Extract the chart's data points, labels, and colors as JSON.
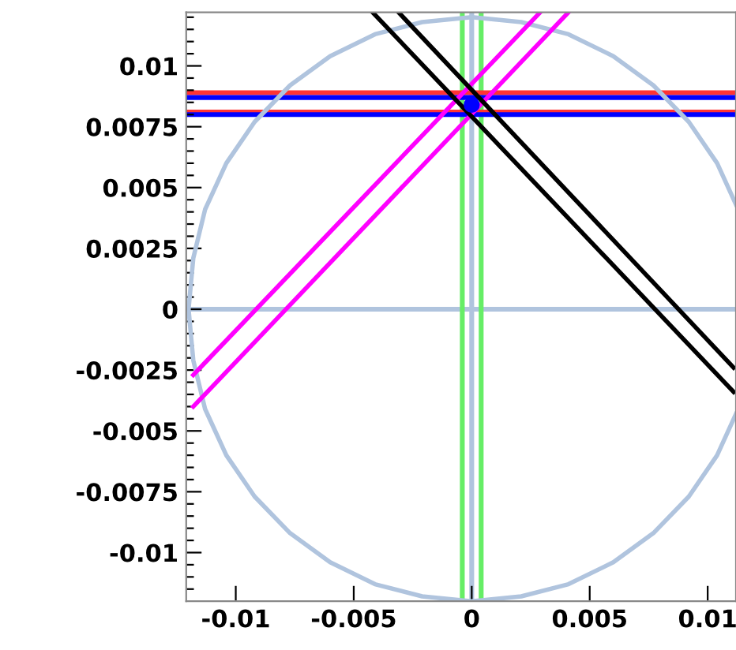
{
  "chart_data": {
    "type": "line",
    "xlim": [
      -0.0121,
      0.0112
    ],
    "ylim": [
      -0.012,
      0.0122
    ],
    "xticks": [
      -0.01,
      -0.005,
      0,
      0.005,
      {
        "value": 0.01,
        "label": "0.01"
      }
    ],
    "yticks": [
      -0.01,
      -0.0075,
      -0.005,
      -0.0025,
      0,
      0.0025,
      0.005,
      0.0075,
      0.01,
      {
        "value": -0.0115,
        "label": null
      },
      {
        "value": -0.011,
        "label": null
      },
      {
        "value": -0.0105,
        "label": null
      },
      {
        "value": -0.0095,
        "label": null
      },
      {
        "value": -0.009,
        "label": null
      },
      {
        "value": -0.0085,
        "label": null
      },
      {
        "value": -0.008,
        "label": null
      },
      {
        "value": -0.007,
        "label": null
      },
      {
        "value": -0.0065,
        "label": null
      },
      {
        "value": -0.006,
        "label": null
      },
      {
        "value": -0.0055,
        "label": null
      },
      {
        "value": -0.0045,
        "label": null
      },
      {
        "value": -0.004,
        "label": null
      },
      {
        "value": -0.0035,
        "label": null
      },
      {
        "value": -0.003,
        "label": null
      },
      {
        "value": -0.002,
        "label": null
      },
      {
        "value": -0.0015,
        "label": null
      },
      {
        "value": -0.001,
        "label": null
      },
      {
        "value": -0.0005,
        "label": null
      },
      {
        "value": 0.0005,
        "label": null
      },
      {
        "value": 0.001,
        "label": null
      },
      {
        "value": 0.0015,
        "label": null
      },
      {
        "value": 0.002,
        "label": null
      },
      {
        "value": 0.003,
        "label": null
      },
      {
        "value": 0.0035,
        "label": null
      },
      {
        "value": 0.004,
        "label": null
      },
      {
        "value": 0.0045,
        "label": null
      },
      {
        "value": 0.0055,
        "label": null
      },
      {
        "value": 0.006,
        "label": null
      },
      {
        "value": 0.0065,
        "label": null
      },
      {
        "value": 0.007,
        "label": null
      },
      {
        "value": 0.008,
        "label": null
      },
      {
        "value": 0.0085,
        "label": null
      },
      {
        "value": 0.009,
        "label": null
      },
      {
        "value": 0.0095,
        "label": null
      },
      {
        "value": 0.0105,
        "label": null
      },
      {
        "value": 0.011,
        "label": null
      },
      {
        "value": 0.0115,
        "label": null
      },
      {
        "value": 0.012,
        "label": null
      }
    ],
    "grid": false,
    "legend": false,
    "marker": "none",
    "line_style": "solid",
    "series": [
      {
        "color": "#b0c4de",
        "x": [
          0.0112,
          0.0104,
          0.0092,
          0.0077,
          0.006,
          0.0041,
          0.0021,
          0,
          -0.0021,
          -0.0041,
          -0.006,
          -0.0077,
          -0.0092,
          -0.0104,
          -0.0113,
          -0.0118,
          -0.012,
          -0.0118,
          -0.0113,
          -0.0104,
          -0.0092,
          -0.0077,
          -0.006,
          -0.0041,
          -0.0021,
          0,
          0.0021,
          0.0041,
          0.006,
          0.0077,
          0.0092,
          0.0104,
          0.0112
        ],
        "values": [
          0.0043,
          0.006,
          0.0077,
          0.0092,
          0.0104,
          0.0113,
          0.0118,
          0.012,
          0.0118,
          0.0113,
          0.0104,
          0.0092,
          0.0077,
          0.006,
          0.0041,
          0.0021,
          0,
          -0.0021,
          -0.0041,
          -0.006,
          -0.0077,
          -0.0092,
          -0.0104,
          -0.0113,
          -0.0118,
          -0.012,
          -0.0118,
          -0.0113,
          -0.0104,
          -0.0092,
          -0.0077,
          -0.006,
          -0.0043
        ]
      },
      {
        "color": "#ff00ff",
        "x": [
          0.0029,
          -0.0118
        ],
        "values": [
          0.0122,
          -0.0027
        ]
      },
      {
        "color": "#ff00ff",
        "x": [
          0.0041,
          -0.0118
        ],
        "values": [
          0.0122,
          -0.004
        ]
      },
      {
        "color": "#000000",
        "x": [
          -0.0042,
          0.0111
        ],
        "values": [
          0.0122,
          -0.0034
        ]
      },
      {
        "color": "#000000",
        "x": [
          -0.0031,
          0.0111
        ],
        "values": [
          0.0122,
          -0.0024
        ]
      },
      {
        "type": "scatter",
        "color": "#0000ff",
        "marker": "circle",
        "x": [
          0
        ],
        "values": [
          0.0084
        ]
      }
    ],
    "ref_lines": [
      {
        "axis": "x",
        "value": 0,
        "color": "#b0c4de"
      },
      {
        "axis": "y",
        "value": 0,
        "color": "#b0c4de"
      },
      {
        "axis": "x",
        "value": -0.0004,
        "color": "#66ee66"
      },
      {
        "axis": "x",
        "value": 0.0004,
        "color": "#66ee66"
      },
      {
        "axis": "y",
        "value": 0.0089,
        "color": "#ff3333"
      },
      {
        "axis": "y",
        "value": 0.0087,
        "color": "#0000ff"
      },
      {
        "axis": "y",
        "value": 0.0081,
        "color": "#ff3333"
      },
      {
        "axis": "y",
        "value": 0.008,
        "color": "#0000ff"
      }
    ]
  }
}
